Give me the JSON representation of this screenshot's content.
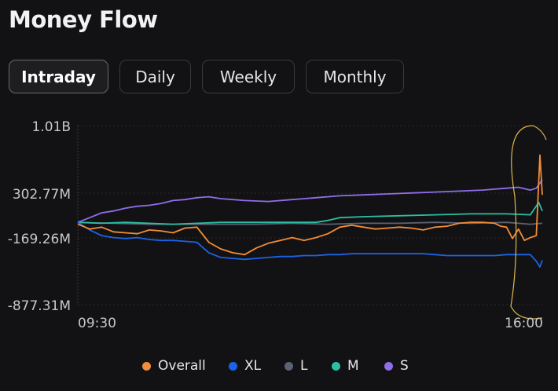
{
  "title": "Money Flow",
  "tabs": [
    {
      "label": "Intraday",
      "active": true
    },
    {
      "label": "Daily",
      "active": false
    },
    {
      "label": "Weekly",
      "active": false
    },
    {
      "label": "Monthly",
      "active": false
    }
  ],
  "colors": {
    "background": "#121214",
    "overall": "#f28c38",
    "xl": "#1c63e8",
    "l": "#5c6275",
    "m": "#2cbfa3",
    "s": "#8f6ee8",
    "annotation": "#e0b84a"
  },
  "chart_data": {
    "type": "line",
    "title": "",
    "xlabel": "",
    "ylabel": "",
    "y_ticks": [
      "1.01B",
      "302.77M",
      "-169.26M",
      "-877.31M"
    ],
    "x_ticks": [
      "09:30",
      "16:00"
    ],
    "ylim": [
      -877.31,
      1010
    ],
    "xlim": [
      0,
      390
    ],
    "grid": "vertical-left-dotted",
    "legend_position": "bottom",
    "series": [
      {
        "name": "Overall",
        "color": "#f28c38",
        "x": [
          0,
          10,
          20,
          30,
          40,
          50,
          60,
          70,
          80,
          90,
          100,
          110,
          120,
          130,
          140,
          150,
          160,
          170,
          180,
          190,
          200,
          210,
          220,
          230,
          240,
          250,
          260,
          270,
          280,
          290,
          300,
          310,
          320,
          330,
          340,
          350,
          355,
          360,
          365,
          370,
          375,
          380,
          385,
          388,
          390
        ],
        "y": [
          -30,
          -80,
          -60,
          -110,
          -120,
          -130,
          -90,
          -100,
          -120,
          -70,
          -60,
          -220,
          -290,
          -330,
          -350,
          -280,
          -230,
          -200,
          -170,
          -200,
          -170,
          -130,
          -60,
          -40,
          -60,
          -80,
          -70,
          -60,
          -70,
          -90,
          -60,
          -50,
          -20,
          -10,
          -10,
          -20,
          -50,
          -60,
          -180,
          -80,
          -200,
          -170,
          -150,
          700,
          280
        ]
      },
      {
        "name": "XL",
        "color": "#1c63e8",
        "x": [
          0,
          10,
          20,
          30,
          40,
          50,
          60,
          70,
          80,
          90,
          100,
          110,
          120,
          130,
          140,
          150,
          160,
          170,
          180,
          190,
          200,
          210,
          220,
          230,
          240,
          250,
          260,
          270,
          280,
          290,
          300,
          310,
          320,
          330,
          340,
          350,
          360,
          370,
          380,
          385,
          388,
          390
        ],
        "y": [
          -10,
          -90,
          -150,
          -170,
          -180,
          -170,
          -190,
          -200,
          -200,
          -210,
          -220,
          -330,
          -380,
          -390,
          -400,
          -390,
          -380,
          -370,
          -370,
          -360,
          -360,
          -350,
          -350,
          -340,
          -340,
          -340,
          -340,
          -340,
          -340,
          -340,
          -350,
          -360,
          -360,
          -360,
          -360,
          -360,
          -350,
          -350,
          -350,
          -420,
          -480,
          -410
        ]
      },
      {
        "name": "L",
        "color": "#5c6275",
        "x": [
          0,
          30,
          60,
          90,
          120,
          150,
          180,
          210,
          240,
          270,
          300,
          330,
          360,
          380,
          390
        ],
        "y": [
          -10,
          -20,
          -30,
          -30,
          -30,
          -30,
          -20,
          -30,
          -20,
          -20,
          -10,
          -20,
          -10,
          -30,
          -20
        ]
      },
      {
        "name": "M",
        "color": "#2cbfa3",
        "x": [
          0,
          20,
          40,
          60,
          80,
          100,
          120,
          150,
          180,
          200,
          210,
          220,
          240,
          270,
          300,
          330,
          360,
          380,
          387,
          390
        ],
        "y": [
          -10,
          -20,
          -10,
          -20,
          -30,
          -20,
          -10,
          -10,
          -10,
          -10,
          10,
          40,
          50,
          60,
          70,
          80,
          80,
          70,
          200,
          110
        ]
      },
      {
        "name": "S",
        "color": "#8f6ee8",
        "x": [
          0,
          10,
          20,
          30,
          40,
          50,
          60,
          70,
          80,
          90,
          100,
          110,
          120,
          140,
          160,
          180,
          200,
          220,
          240,
          260,
          280,
          300,
          320,
          340,
          350,
          360,
          370,
          380,
          385,
          390
        ],
        "y": [
          -10,
          40,
          90,
          110,
          140,
          160,
          170,
          190,
          220,
          230,
          250,
          260,
          240,
          220,
          210,
          230,
          250,
          270,
          280,
          290,
          300,
          310,
          320,
          330,
          340,
          350,
          360,
          330,
          350,
          440
        ]
      }
    ]
  }
}
